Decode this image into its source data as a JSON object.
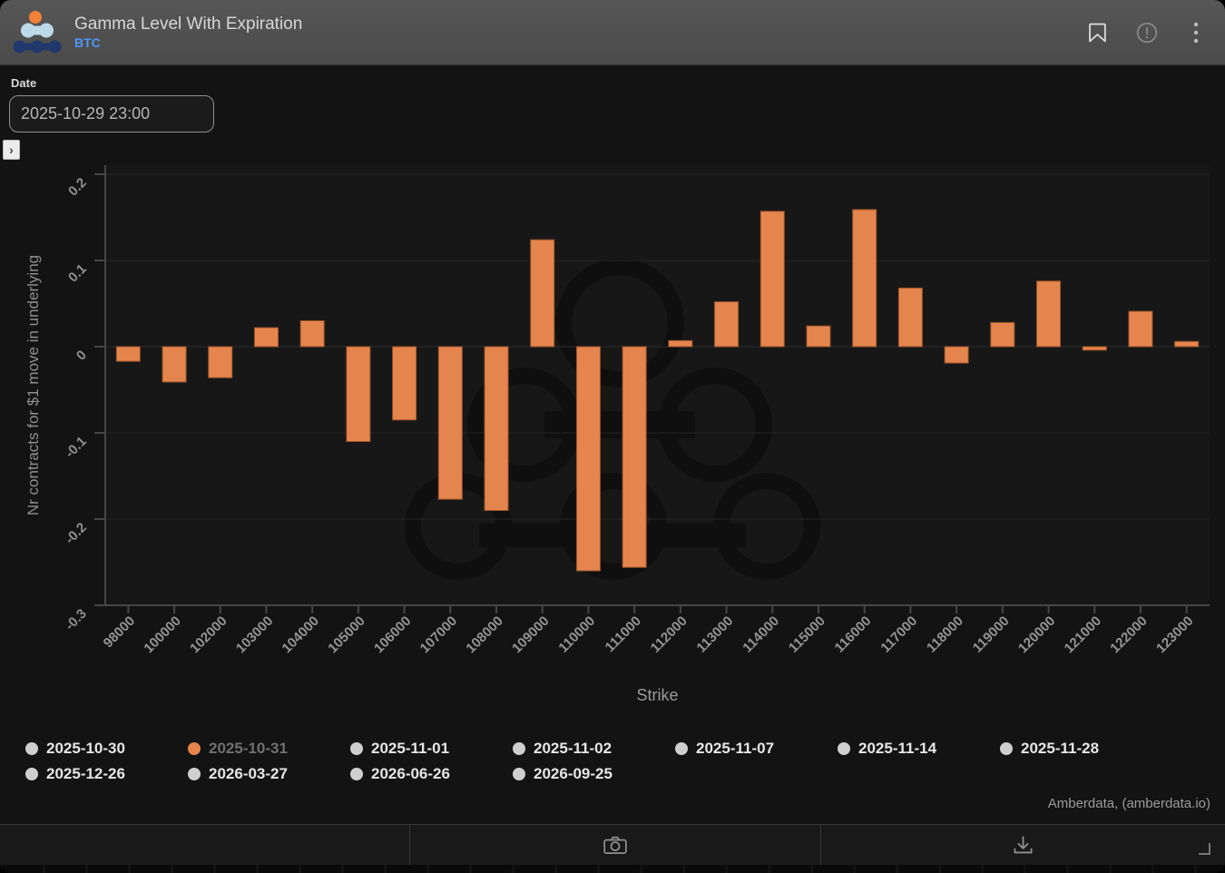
{
  "header": {
    "title": "Gamma Level With Expiration",
    "subtitle": "BTC",
    "icons": [
      "bookmark-icon",
      "alert-icon",
      "kebab-menu-icon"
    ]
  },
  "controls": {
    "date_label": "Date",
    "date_value": "2025-10-29 23:00",
    "expand_chevron": "›"
  },
  "chart_data": {
    "type": "bar",
    "title": "Gamma Level With Expiration",
    "xlabel": "Strike",
    "ylabel": "Nr contracts for $1 move in underlying",
    "ylim": [
      -0.3,
      0.2
    ],
    "yticks": [
      0.2,
      0.1,
      0,
      -0.1,
      -0.2,
      -0.3
    ],
    "grid": true,
    "legend_position": "bottom",
    "bar_color": "#e5854e",
    "bar_edge_color": "#9c5428",
    "categories": [
      "98000",
      "100000",
      "102000",
      "103000",
      "104000",
      "105000",
      "106000",
      "107000",
      "108000",
      "109000",
      "110000",
      "111000",
      "112000",
      "113000",
      "114000",
      "115000",
      "116000",
      "117000",
      "118000",
      "119000",
      "120000",
      "121000",
      "122000",
      "123000"
    ],
    "series": [
      {
        "name": "2025-10-31",
        "values": [
          -0.017,
          -0.041,
          -0.036,
          0.022,
          0.03,
          -0.11,
          -0.085,
          -0.177,
          -0.19,
          0.124,
          -0.26,
          -0.256,
          0.007,
          0.052,
          0.157,
          0.024,
          0.159,
          0.068,
          -0.019,
          0.028,
          0.076,
          -0.004,
          0.041,
          0.006
        ]
      }
    ]
  },
  "legend": {
    "active_color": "#e5854e",
    "inactive_color": "#cfcfcf",
    "items": [
      {
        "label": "2025-10-30",
        "active": false
      },
      {
        "label": "2025-10-31",
        "active": true
      },
      {
        "label": "2025-11-01",
        "active": false
      },
      {
        "label": "2025-11-02",
        "active": false
      },
      {
        "label": "2025-11-07",
        "active": false
      },
      {
        "label": "2025-11-14",
        "active": false
      },
      {
        "label": "2025-11-28",
        "active": false
      },
      {
        "label": "2025-12-26",
        "active": false
      },
      {
        "label": "2026-03-27",
        "active": false
      },
      {
        "label": "2026-06-26",
        "active": false
      },
      {
        "label": "2026-09-25",
        "active": false
      }
    ]
  },
  "attribution": "Amberdata, (amberdata.io)",
  "toolbar": {
    "icons": [
      "camera-icon",
      "download-icon",
      "resize-handle-icon"
    ]
  }
}
